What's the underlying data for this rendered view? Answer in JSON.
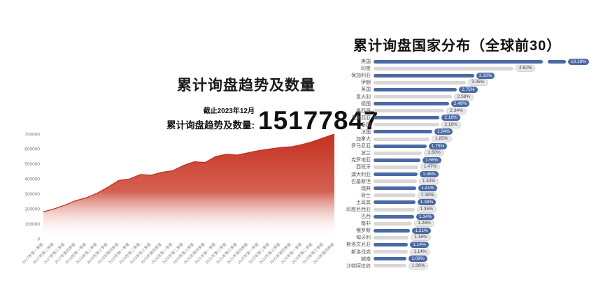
{
  "page": {
    "background": "#ffffff"
  },
  "left_chart": {
    "title": "累计询盘趋势及数量",
    "annotation": {
      "as_of": "截止2023年12月",
      "label": "累计询盘趋势及数量:",
      "value": "15177847"
    }
  },
  "right_chart": {
    "title": "累计询盘国家分布（全球前30）"
  },
  "colors": {
    "bar_blue": "#4a6aa5",
    "bar_gray": "#d8d8d8",
    "badge_gray_bg": "#e7e7e7",
    "area_red": "#c4301f",
    "line_red": "#bf3122"
  },
  "chart_data": [
    {
      "type": "area",
      "title": "累计询盘趋势及数量",
      "x": [
        "2017年第一季度",
        "2017年第二季度",
        "2017年第三季度",
        "2017年第四季度",
        "2018年第一季度",
        "2018年第二季度",
        "2018年第三季度",
        "2018年第四季度",
        "2019年第一季度",
        "2019年第二季度",
        "2019年第三季度",
        "2019年第四季度",
        "2020年第一季度",
        "2020年第二季度",
        "2020年第三季度",
        "2020年第四季度",
        "2021年第一季度",
        "2021年第二季度",
        "2021年第三季度",
        "2021年第四季度",
        "2022年第一季度",
        "2022年第二季度",
        "2022年第三季度",
        "2022年第四季度",
        "2023年第一季度",
        "2023年第二季度",
        "2023年第三季度",
        "2023年第四季度"
      ],
      "values": [
        180000,
        200000,
        225000,
        255000,
        275000,
        305000,
        345000,
        390000,
        400000,
        430000,
        425000,
        445000,
        455000,
        490000,
        515000,
        510000,
        550000,
        565000,
        560000,
        575000,
        590000,
        600000,
        610000,
        615000,
        630000,
        650000,
        675000,
        700000
      ],
      "ylim": [
        0,
        700000
      ],
      "yticks": [
        0,
        100000,
        200000,
        300000,
        400000,
        500000,
        600000,
        700000
      ],
      "grid": false,
      "legend": "none",
      "line_color": "#bf3122",
      "gradient": [
        {
          "offset": "0%",
          "color": "#c4301f",
          "opacity": 1
        },
        {
          "offset": "55%",
          "color": "#cd4533",
          "opacity": 0.85
        },
        {
          "offset": "100%",
          "color": "#ffffff",
          "opacity": 0
        }
      ]
    },
    {
      "type": "bar",
      "orientation": "horizontal",
      "title": "累计询盘国家分布（全球前30）",
      "categories": [
        "美国",
        "印度",
        "保加利亚",
        "伊朗",
        "英国",
        "意大利",
        "德国",
        "墨西哥",
        "马来西亚",
        "泰国",
        "法国",
        "加拿大",
        "罗马尼亚",
        "波兰",
        "克罗地亚",
        "西班牙",
        "澳大利亚",
        "巴基斯坦",
        "瑞典",
        "荷兰",
        "土耳其",
        "印度尼西亚",
        "巴西",
        "南非",
        "俄罗斯",
        "匈牙利",
        "斯洛文尼亚",
        "斯洛伐克",
        "越南",
        "沙特阿拉伯"
      ],
      "values": [
        10.18,
        4.62,
        3.32,
        3.05,
        2.75,
        2.58,
        2.49,
        2.34,
        2.18,
        2.16,
        1.94,
        1.85,
        1.75,
        1.6,
        1.55,
        1.47,
        1.46,
        1.43,
        1.41,
        1.38,
        1.38,
        1.35,
        1.34,
        1.28,
        1.21,
        1.16,
        1.14,
        1.14,
        1.09,
        1.08
      ],
      "value_suffix": "%",
      "axis_break_first_bar": true,
      "bar_color_odd_rows": "#4a6aa5",
      "bar_color_even_rows": "#d8d8d8"
    }
  ]
}
